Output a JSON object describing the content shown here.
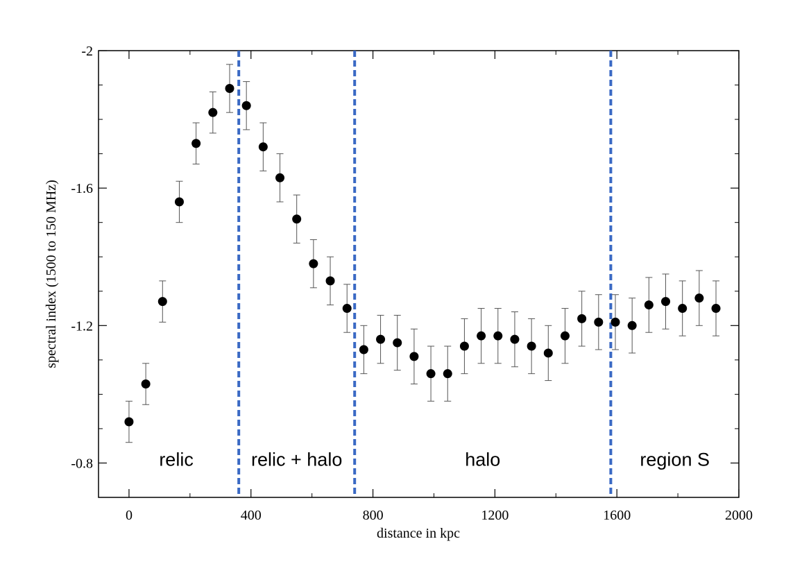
{
  "chart_data": {
    "type": "scatter",
    "title": "",
    "xlabel": "distance in kpc",
    "ylabel": "spectral index (1500 to 150 MHz)",
    "xlim": [
      -100,
      2000
    ],
    "ylim": [
      -0.7,
      -2.0
    ],
    "y_axis_inverted": true,
    "grid": false,
    "x_ticks": [
      0,
      400,
      800,
      1200,
      1600,
      2000
    ],
    "x_tick_labels": [
      "0",
      "400",
      "800",
      "1200",
      "1600",
      "2000"
    ],
    "y_ticks": [
      -2.0,
      -1.6,
      -1.2,
      -0.8
    ],
    "y_tick_labels": [
      "-2",
      "-1.6",
      "-1.2",
      "-0.8"
    ],
    "marker_color": "#000000",
    "error_bar_color": "#555555",
    "divider_color": "#3a69c4",
    "series": [
      {
        "x": [
          0,
          55,
          110,
          165,
          220,
          275,
          330,
          385,
          440,
          495,
          550,
          605,
          660,
          715,
          770,
          825,
          880,
          935,
          990,
          1045,
          1100,
          1155,
          1210,
          1265,
          1320,
          1375,
          1430,
          1485,
          1540,
          1595,
          1650,
          1705,
          1760,
          1815,
          1870,
          1925
        ],
        "y": [
          -0.92,
          -1.03,
          -1.27,
          -1.56,
          -1.73,
          -1.82,
          -1.89,
          -1.84,
          -1.72,
          -1.63,
          -1.51,
          -1.38,
          -1.33,
          -1.25,
          -1.13,
          -1.16,
          -1.15,
          -1.11,
          -1.06,
          -1.06,
          -1.14,
          -1.17,
          -1.17,
          -1.16,
          -1.14,
          -1.12,
          -1.17,
          -1.22,
          -1.21,
          -1.21,
          -1.2,
          -1.26,
          -1.27,
          -1.25,
          -1.28,
          -1.25
        ],
        "err": [
          0.06,
          0.06,
          0.06,
          0.06,
          0.06,
          0.06,
          0.07,
          0.07,
          0.07,
          0.07,
          0.07,
          0.07,
          0.07,
          0.07,
          0.07,
          0.07,
          0.08,
          0.08,
          0.08,
          0.08,
          0.08,
          0.08,
          0.08,
          0.08,
          0.08,
          0.08,
          0.08,
          0.08,
          0.08,
          0.08,
          0.08,
          0.08,
          0.08,
          0.08,
          0.08,
          0.08
        ]
      }
    ],
    "dividers": [
      360,
      740,
      1580
    ],
    "regions": [
      {
        "label": "relic",
        "x_center": 155
      },
      {
        "label": "relic + halo",
        "x_center": 550
      },
      {
        "label": "halo",
        "x_center": 1160
      },
      {
        "label": "region S",
        "x_center": 1790
      }
    ],
    "region_label_y": -0.81
  }
}
